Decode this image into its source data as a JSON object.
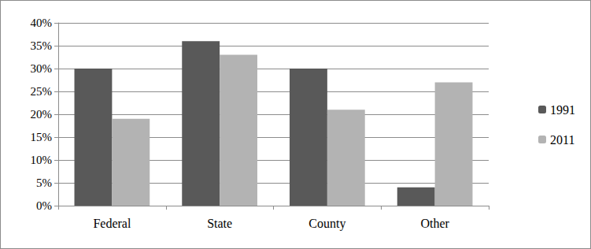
{
  "chart_data": {
    "type": "bar",
    "categories": [
      "Federal",
      "State",
      "County",
      "Other"
    ],
    "series": [
      {
        "name": "1991",
        "color": "#595959",
        "values": [
          30,
          36,
          30,
          4
        ]
      },
      {
        "name": "2011",
        "color": "#b3b3b3",
        "values": [
          19,
          33,
          21,
          27
        ]
      }
    ],
    "ylim": [
      0,
      40
    ],
    "yticks": [
      {
        "value": 0,
        "label": "0%"
      },
      {
        "value": 5,
        "label": "5%"
      },
      {
        "value": 10,
        "label": "10%"
      },
      {
        "value": 15,
        "label": "15%"
      },
      {
        "value": 20,
        "label": "20%"
      },
      {
        "value": 25,
        "label": "25%"
      },
      {
        "value": 30,
        "label": "30%"
      },
      {
        "value": 35,
        "label": "35%"
      },
      {
        "value": 40,
        "label": "40%"
      }
    ],
    "grid": true,
    "legend": "right"
  }
}
